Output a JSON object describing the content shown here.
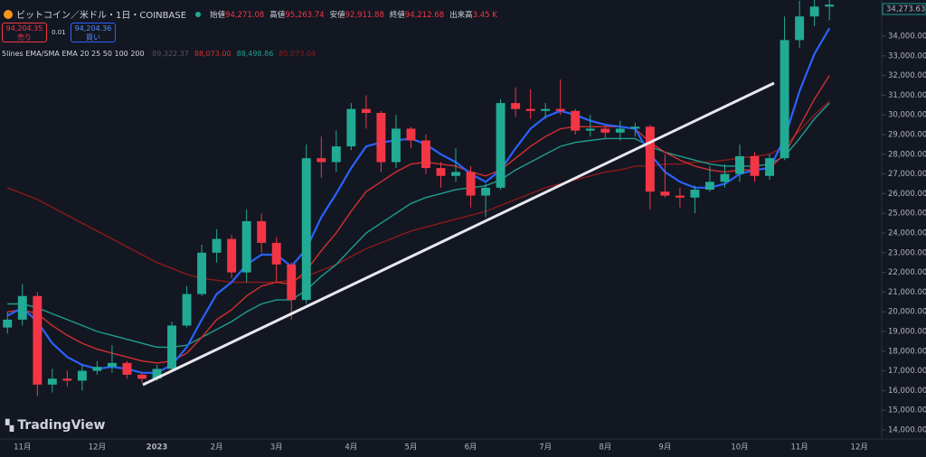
{
  "header": {
    "symbol": "ビットコイン／米ドル・1日・COINBASE",
    "ohlc": [
      {
        "label": "始値",
        "value": "94,271.08"
      },
      {
        "label": "高値",
        "value": "95,263.74"
      },
      {
        "label": "安値",
        "value": "92,911.88"
      },
      {
        "label": "終値",
        "value": "94,212.68"
      },
      {
        "label": "出来高",
        "value": "3.45 K"
      }
    ],
    "sell_price": "94,204.35",
    "sell_label": "売り",
    "spread": "0.01",
    "buy_price": "94,204.36",
    "buy_label": "買い",
    "indicator": "5lines EMA/SMA EMA 20 25 50 100 200",
    "indicator_values": [
      "89,322.37",
      "88,073.00",
      "88,498.86",
      "85,073.04"
    ],
    "price_tag": "34,273.63",
    "logo": "TradingView"
  },
  "chart_data": {
    "type": "candlestick",
    "categories": [
      null,
      "11月",
      null,
      null,
      null,
      null,
      "12月",
      null,
      null,
      null,
      "2023",
      null,
      null,
      null,
      "2月",
      null,
      null,
      null,
      "3月",
      null,
      null,
      null,
      null,
      "4月",
      null,
      null,
      null,
      "5月",
      null,
      null,
      null,
      "6月",
      null,
      null,
      null,
      null,
      "7月",
      null,
      null,
      null,
      "8月",
      null,
      null,
      null,
      "9月",
      null,
      null,
      null,
      null,
      "10月",
      null,
      null,
      null,
      "11月",
      null,
      null,
      null,
      "12月",
      null
    ],
    "open": [
      19200,
      19600,
      20800,
      16300,
      16600,
      16500,
      17000,
      17200,
      17400,
      16800,
      16600,
      17100,
      19300,
      20900,
      23000,
      23700,
      22000,
      24600,
      23500,
      22400,
      20600,
      27800,
      27600,
      28400,
      30300,
      30100,
      27600,
      29300,
      28700,
      27300,
      26900,
      27100,
      25900,
      26300,
      30600,
      30300,
      30200,
      30300,
      30200,
      29200,
      29300,
      29100,
      29300,
      29400,
      26100,
      25900,
      25800,
      26200,
      26600,
      27000,
      27900,
      26900,
      27800,
      33800,
      35000,
      35500,
      null,
      null,
      null
    ],
    "high": [
      20000,
      21400,
      21000,
      17100,
      17000,
      17300,
      17500,
      18300,
      17500,
      16900,
      17300,
      19500,
      21300,
      23400,
      24200,
      23900,
      25200,
      25000,
      23800,
      22500,
      28500,
      28900,
      29200,
      30600,
      31000,
      30200,
      30000,
      29400,
      29000,
      27600,
      28300,
      27400,
      26500,
      30800,
      31400,
      31300,
      30600,
      31800,
      30300,
      30000,
      29500,
      29700,
      29600,
      29500,
      28000,
      26300,
      26400,
      27400,
      27500,
      28500,
      28100,
      28000,
      35000,
      35800,
      36000,
      36000,
      null,
      null,
      null
    ],
    "low": [
      18900,
      19300,
      15700,
      15900,
      16200,
      16000,
      16800,
      16900,
      16600,
      16400,
      16500,
      17000,
      19200,
      20800,
      22500,
      21700,
      21500,
      23000,
      21500,
      19600,
      20400,
      26800,
      27100,
      28200,
      29300,
      27100,
      27300,
      28300,
      27000,
      26300,
      26600,
      25300,
      24800,
      26200,
      29900,
      29800,
      29800,
      30000,
      29000,
      28900,
      28800,
      28700,
      28900,
      25200,
      25800,
      25300,
      25000,
      26100,
      26300,
      26600,
      26600,
      26700,
      27700,
      33400,
      34500,
      34800,
      null,
      null,
      null
    ],
    "close": [
      19600,
      20800,
      16300,
      16600,
      16500,
      17000,
      17200,
      17400,
      16800,
      16600,
      17100,
      19300,
      20900,
      23000,
      23700,
      22000,
      24600,
      23500,
      22400,
      20600,
      27800,
      27600,
      28400,
      30300,
      30100,
      27600,
      29300,
      28700,
      27300,
      26900,
      27100,
      25900,
      26300,
      30600,
      30300,
      30200,
      30300,
      30200,
      29200,
      29300,
      29100,
      29300,
      29400,
      26100,
      25900,
      25800,
      26200,
      26600,
      27000,
      27900,
      26900,
      27800,
      33800,
      35000,
      35500,
      35600,
      null,
      null,
      null
    ],
    "up_color": "#22ab94",
    "down_color": "#f23645",
    "series": [
      {
        "color": "#2962ff",
        "values": [
          19800,
          20200,
          19500,
          18400,
          17700,
          17300,
          17100,
          17200,
          17100,
          16900,
          16900,
          17300,
          18200,
          19600,
          20900,
          21500,
          22400,
          22900,
          22900,
          22300,
          23200,
          24800,
          26000,
          27300,
          28400,
          28600,
          28700,
          28800,
          28500,
          28000,
          27600,
          27000,
          26600,
          27200,
          28300,
          29300,
          29900,
          30200,
          30000,
          29700,
          29500,
          29400,
          29300,
          28000,
          27100,
          26600,
          26300,
          26300,
          26500,
          27000,
          27200,
          27300,
          28800,
          31200,
          33100,
          34400,
          null,
          null,
          null
        ]
      },
      {
        "color": "#d32f2f",
        "values": [
          20000,
          20100,
          19900,
          19300,
          18800,
          18400,
          18100,
          17900,
          17700,
          17500,
          17400,
          17500,
          17900,
          18700,
          19600,
          20100,
          20800,
          21300,
          21500,
          21400,
          22100,
          23100,
          24000,
          25100,
          26100,
          26600,
          27100,
          27500,
          27600,
          27500,
          27400,
          27100,
          26900,
          27200,
          27800,
          28400,
          28900,
          29300,
          29400,
          29400,
          29400,
          29400,
          29300,
          28600,
          28100,
          27700,
          27400,
          27200,
          27100,
          27200,
          27200,
          27300,
          28000,
          29400,
          30800,
          32000,
          null,
          null,
          null
        ]
      },
      {
        "color": "#1e9e8e",
        "values": [
          20400,
          20400,
          20200,
          19900,
          19600,
          19300,
          19000,
          18800,
          18600,
          18400,
          18200,
          18200,
          18300,
          18700,
          19100,
          19500,
          20000,
          20400,
          20600,
          20600,
          21100,
          21800,
          22400,
          23200,
          24000,
          24500,
          25000,
          25500,
          25800,
          26000,
          26200,
          26300,
          26400,
          26700,
          27200,
          27600,
          28000,
          28400,
          28600,
          28700,
          28800,
          28800,
          28800,
          28400,
          28100,
          27900,
          27700,
          27500,
          27400,
          27400,
          27400,
          27500,
          27900,
          28800,
          29800,
          30600,
          null,
          null,
          null
        ]
      },
      {
        "color": "#8b1a1a",
        "values": [
          26300,
          26000,
          25700,
          25300,
          24900,
          24500,
          24100,
          23700,
          23300,
          22900,
          22500,
          22200,
          21900,
          21700,
          21600,
          21500,
          21500,
          21500,
          21500,
          21600,
          21800,
          22100,
          22400,
          22800,
          23200,
          23500,
          23800,
          24100,
          24300,
          24500,
          24700,
          24900,
          25100,
          25400,
          25700,
          26000,
          26300,
          26500,
          26700,
          26900,
          27100,
          27200,
          27400,
          27400,
          27500,
          27500,
          27600,
          27600,
          27700,
          27800,
          27900,
          28000,
          28400,
          29200,
          30000,
          30700,
          null,
          null,
          null
        ]
      }
    ],
    "ylim": [
      13540,
      35835
    ],
    "yticks": [
      {
        "value": 14000,
        "label": "14,000.00"
      },
      {
        "value": 15000,
        "label": "15,000.00"
      },
      {
        "value": 16000,
        "label": "16,000.00"
      },
      {
        "value": 17000,
        "label": "17,000.00"
      },
      {
        "value": 18000,
        "label": "18,000.00"
      },
      {
        "value": 19000,
        "label": "19,000.00"
      },
      {
        "value": 20000,
        "label": "20,000.00"
      },
      {
        "value": 21000,
        "label": "21,000.00"
      },
      {
        "value": 22000,
        "label": "22,000.00"
      },
      {
        "value": 23000,
        "label": "23,000.00"
      },
      {
        "value": 24000,
        "label": "24,000.00"
      },
      {
        "value": 25000,
        "label": "25,000.00"
      },
      {
        "value": 26000,
        "label": "26,000.00"
      },
      {
        "value": 27000,
        "label": "27,000.00"
      },
      {
        "value": 28000,
        "label": "28,000.00"
      },
      {
        "value": 29000,
        "label": "29,000.00"
      },
      {
        "value": 30000,
        "label": "30,000.00"
      },
      {
        "value": 31000,
        "label": "31,000.00"
      },
      {
        "value": 32000,
        "label": "32,000.00"
      },
      {
        "value": 33000,
        "label": "33,000.00"
      },
      {
        "value": 34000,
        "label": "34,000.00"
      }
    ]
  }
}
